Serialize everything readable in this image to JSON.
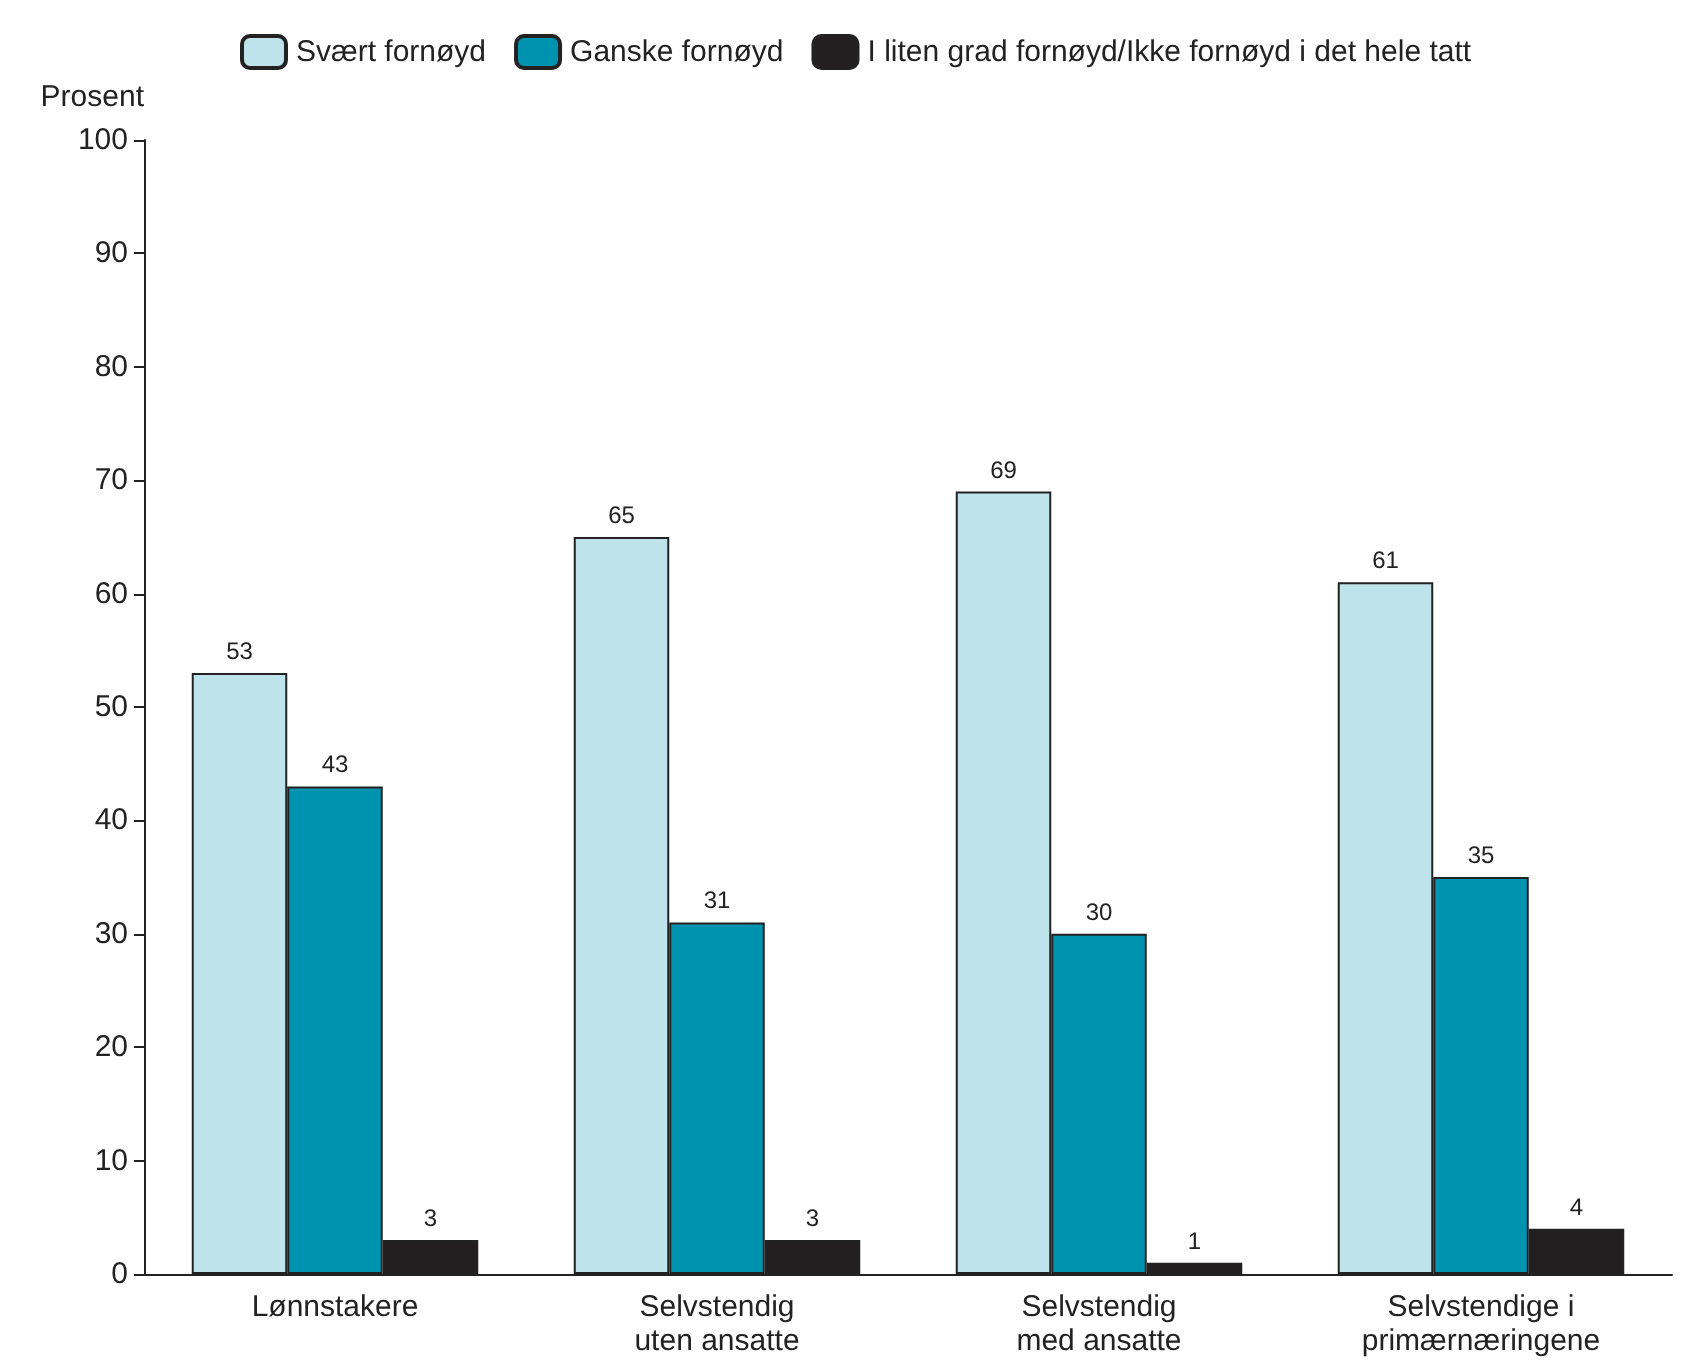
{
  "chart_data": {
    "type": "bar",
    "ylabel": "Prosent",
    "categories": [
      "Lønnstakere",
      "Selvstendig\nuten ansatte",
      "Selvstendig\nmed ansatte",
      "Selvstendige i\nprimærnæringene"
    ],
    "series": [
      {
        "name": "Svært fornøyd",
        "color": "#bfe3ea",
        "values": [
          53,
          65,
          69,
          61
        ]
      },
      {
        "name": "Ganske fornøyd",
        "color": "#0093b0",
        "values": [
          43,
          31,
          30,
          35
        ]
      },
      {
        "name": "I liten grad fornøyd/Ikke fornøyd i det hele tatt",
        "color": "#231f20",
        "values": [
          3,
          3,
          1,
          4
        ]
      }
    ],
    "ylim": [
      0,
      100
    ],
    "yticks": [
      0,
      10,
      20,
      30,
      40,
      50,
      60,
      70,
      80,
      90,
      100
    ],
    "grid": false,
    "legend": "top",
    "data_labels": true
  }
}
